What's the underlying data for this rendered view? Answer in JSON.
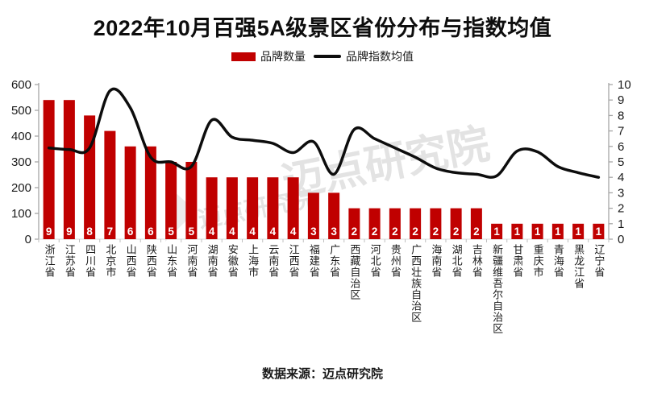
{
  "title": "2022年10月百强5A级景区省份分布与指数均值",
  "legend": {
    "bar_label": "品牌数量",
    "line_label": "品牌指数均值"
  },
  "footer": {
    "source": "数据来源：迈点研究院"
  },
  "watermark": {
    "text": "迈点研究院"
  },
  "colors": {
    "bar": "#c00000",
    "line": "#0d0d0d",
    "axis": "#a6a6a6",
    "minor_tick": "#bfbfbf",
    "bar_value_text": "#ffffff",
    "watermark": "#e3e3e3"
  },
  "chart_data": {
    "type": "combo",
    "title": "2022年10月百强5A级景区省份分布与指数均值",
    "categories": [
      "浙江省",
      "江苏省",
      "四川省",
      "北京市",
      "山西省",
      "陕西省",
      "山东省",
      "河南省",
      "湖南省",
      "安徽省",
      "上海市",
      "云南省",
      "江西省",
      "福建省",
      "广东省",
      "西藏自治区",
      "河北省",
      "贵州省",
      "广西壮族自治区",
      "海南省",
      "湖北省",
      "吉林省",
      "新疆维吾尔自治区",
      "甘肃省",
      "重庆市",
      "青海省",
      "黑龙江省",
      "辽宁省"
    ],
    "series": [
      {
        "name": "品牌数量",
        "type": "bar",
        "axis": "left",
        "values": [
          9,
          9,
          8,
          7,
          6,
          6,
          5,
          5,
          4,
          4,
          4,
          4,
          4,
          3,
          3,
          2,
          2,
          2,
          2,
          2,
          2,
          2,
          1,
          1,
          1,
          1,
          1,
          1
        ]
      },
      {
        "name": "品牌指数均值",
        "type": "line",
        "axis": "right",
        "values": [
          5.9,
          5.8,
          5.9,
          9.6,
          8.5,
          5.3,
          5.0,
          4.7,
          7.7,
          6.6,
          6.4,
          6.2,
          5.6,
          6.3,
          4.2,
          7.1,
          6.5,
          5.9,
          5.3,
          4.6,
          4.3,
          4.2,
          4.1,
          5.7,
          5.65,
          4.7,
          4.3,
          4.0
        ]
      }
    ],
    "yaxis_left": {
      "min": 0,
      "max": 600,
      "ticks": [
        "600",
        "500",
        "400",
        "300",
        "200",
        "100",
        "0"
      ]
    },
    "yaxis_right": {
      "min": 0,
      "max": 10,
      "ticks": [
        "10",
        "9",
        "8",
        "7",
        "6",
        "5",
        "4",
        "3",
        "2",
        "1",
        "0"
      ]
    },
    "grid": false,
    "legend_position": "top"
  }
}
